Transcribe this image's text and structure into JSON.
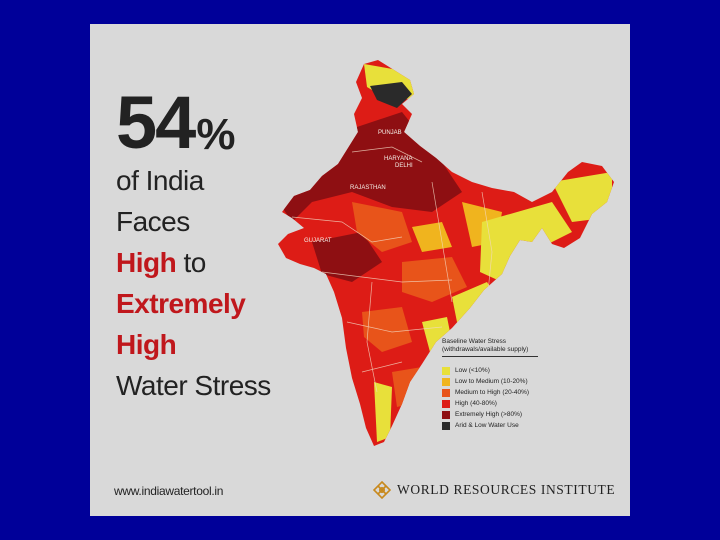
{
  "headline": {
    "percent": "54",
    "percent_sign": "%",
    "line1": "of India",
    "line2": "Faces",
    "high_word": "High",
    "to_word": " to",
    "extremely": "Extremely",
    "high2": "High",
    "water_stress": "Water Stress"
  },
  "url": "www.indiawatertool.in",
  "organization": "WORLD RESOURCES INSTITUTE",
  "map": {
    "state_labels": [
      "PUNJAB",
      "HARYANA",
      "DELHI",
      "RAJASTHAN",
      "GUJARAT"
    ]
  },
  "legend": {
    "title_line1": "Baseline Water Stress",
    "title_line2": "(withdrawals/available supply)",
    "items": [
      {
        "label": "Low (<10%)",
        "color": "#e8e03a"
      },
      {
        "label": "Low to Medium (10-20%)",
        "color": "#f0b41e"
      },
      {
        "label": "Medium to High (20-40%)",
        "color": "#e8541a"
      },
      {
        "label": "High (40-80%)",
        "color": "#dd1c16"
      },
      {
        "label": "Extremely High (>80%)",
        "color": "#8e0f12"
      },
      {
        "label": "Arid & Low Water Use",
        "color": "#2a2a2a"
      }
    ]
  }
}
